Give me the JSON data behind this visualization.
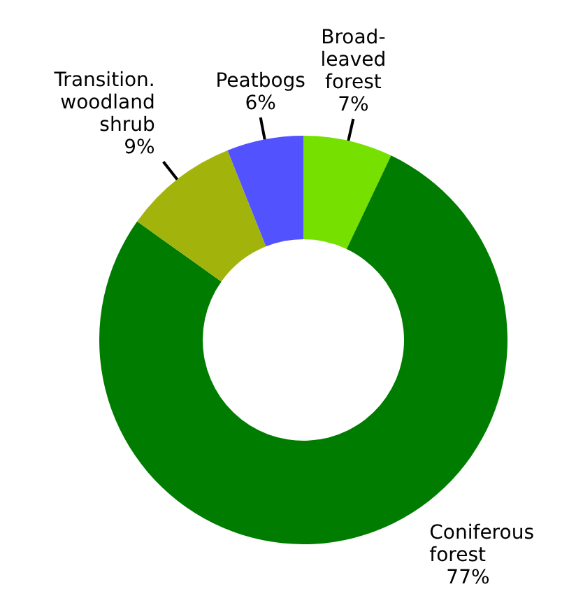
{
  "chart_data": {
    "type": "donut",
    "categories": [
      "Broad-leaved forest",
      "Coniferous forest",
      "Transition. woodland shrub",
      "Peatbogs"
    ],
    "values": [
      7,
      77,
      9,
      6
    ],
    "value_labels": [
      "7%",
      "77%",
      "9%",
      "6%"
    ],
    "colors": [
      "#76e000",
      "#007d00",
      "#a2b40c",
      "#5252ff"
    ]
  }
}
